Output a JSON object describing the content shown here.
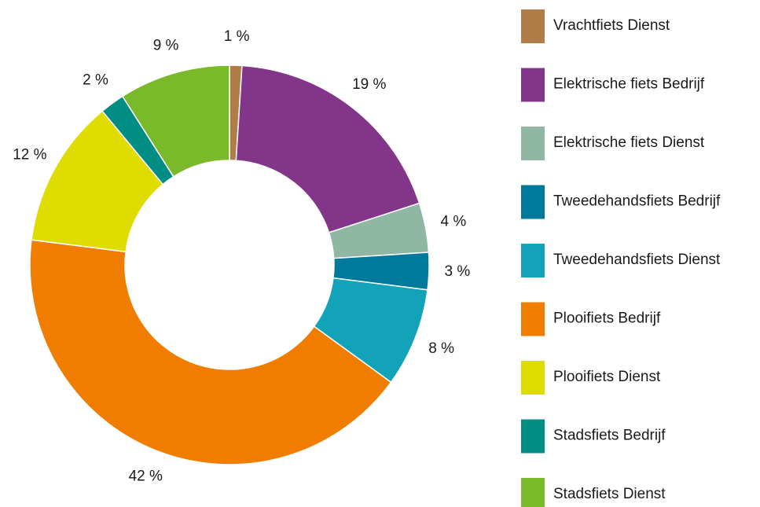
{
  "chart_data": {
    "type": "pie",
    "categories": [
      "Vrachtfiets Dienst",
      "Elektrische fiets Bedrijf",
      "Elektrische fiets Dienst",
      "Tweedehandsfiets Bedrijf",
      "Tweedehandsfiets Dienst",
      "Plooifiets Bedrijf",
      "Plooifiets Dienst",
      "Stadsfiets Bedrijf",
      "Stadsfiets Dienst"
    ],
    "values": [
      1,
      19,
      4,
      3,
      8,
      42,
      12,
      2,
      9
    ],
    "value_labels": [
      "1 %",
      "19 %",
      "4 %",
      "3 %",
      "8 %",
      "42 %",
      "12 %",
      "2 %",
      "9 %"
    ],
    "colors": [
      "#b07d48",
      "#83358a",
      "#8fb7a3",
      "#00799a",
      "#12a3b9",
      "#f07d00",
      "#dedc00",
      "#008d83",
      "#7ab929"
    ],
    "legend": "right"
  }
}
